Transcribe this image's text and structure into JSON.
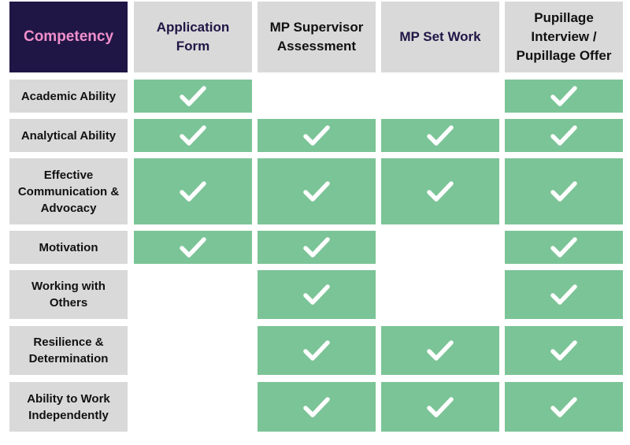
{
  "corner_label": "Competency",
  "columns": [
    {
      "label": "Application Form",
      "label_lines": [
        "Application",
        "Form"
      ]
    },
    {
      "label": "MP Supervisor Assessment",
      "label_lines": [
        "MP Supervisor",
        "Assessment"
      ]
    },
    {
      "label": "MP Set Work",
      "label_lines": [
        "MP Set Work"
      ]
    },
    {
      "label": "Pupillage Interview / Pupillage Offer",
      "label_lines": [
        "Pupillage",
        "Interview /",
        "Pupillage Offer"
      ]
    }
  ],
  "rows": [
    {
      "label": "Academic Ability",
      "label_lines": [
        "Academic Ability"
      ],
      "checks": [
        true,
        false,
        false,
        true
      ]
    },
    {
      "label": "Analytical Ability",
      "label_lines": [
        "Analytical Ability"
      ],
      "checks": [
        true,
        true,
        true,
        true
      ]
    },
    {
      "label": "Effective Communication & Advocacy",
      "label_lines": [
        "Effective",
        "Communication &",
        "Advocacy"
      ],
      "checks": [
        true,
        true,
        true,
        true
      ]
    },
    {
      "label": "Motivation",
      "label_lines": [
        "Motivation"
      ],
      "checks": [
        true,
        true,
        false,
        true
      ]
    },
    {
      "label": "Working with Others",
      "label_lines": [
        "Working with",
        "Others"
      ],
      "checks": [
        false,
        true,
        false,
        true
      ]
    },
    {
      "label": "Resilience & Determination",
      "label_lines": [
        "Resilience &",
        "Determination"
      ],
      "checks": [
        false,
        true,
        true,
        true
      ]
    },
    {
      "label": "Ability to Work Independently",
      "label_lines": [
        "Ability to Work",
        "Independently"
      ],
      "checks": [
        false,
        true,
        true,
        true
      ]
    }
  ],
  "colors": {
    "header_dark": "#201646",
    "corner_text": "#f08fcb",
    "header_gray": "#d9d9d9",
    "check_green": "#7bc497",
    "check_mark": "#ffffff"
  },
  "icon": "checkmark-icon"
}
